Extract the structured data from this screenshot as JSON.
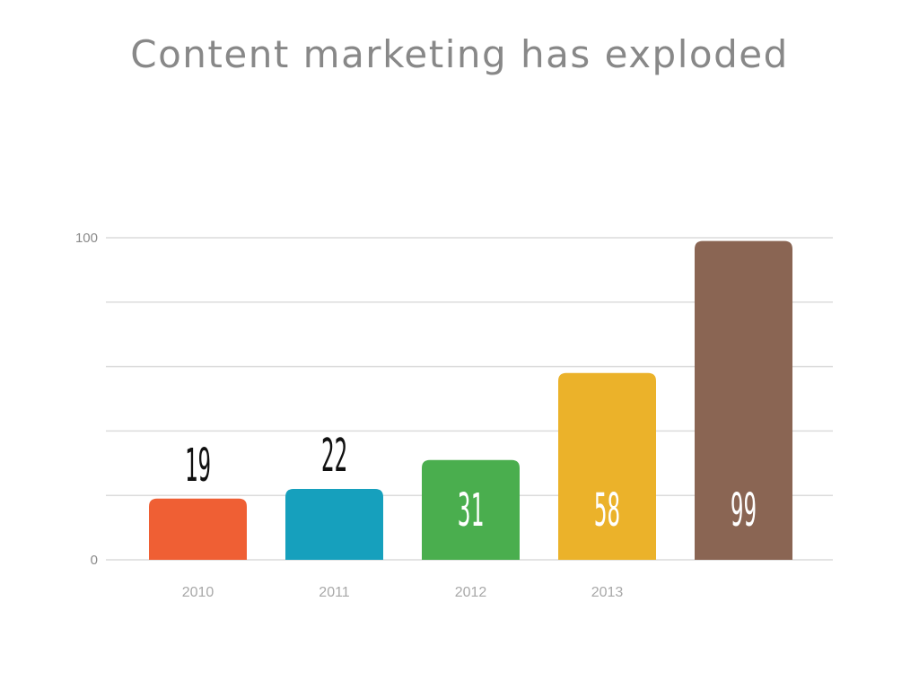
{
  "chart_data": {
    "type": "bar",
    "title": "Content marketing has exploded",
    "categories": [
      "2010",
      "2011",
      "2012",
      "2013",
      ""
    ],
    "values": [
      19,
      22,
      31,
      58,
      99
    ],
    "colors": [
      "#ef5f34",
      "#16a0bd",
      "#4aae4e",
      "#ebb22a",
      "#8a6553"
    ],
    "value_label_colors": [
      "#111111",
      "#111111",
      "#ffffff",
      "#ffffff",
      "#ffffff"
    ],
    "value_label_position": [
      "above",
      "above",
      "inside",
      "inside",
      "inside"
    ],
    "yticks": [
      0,
      100
    ],
    "ylim": [
      0,
      100
    ],
    "grid": true,
    "gridline_count": 6,
    "grid_color": "#dcdcdc",
    "xlabel": "",
    "ylabel": ""
  }
}
